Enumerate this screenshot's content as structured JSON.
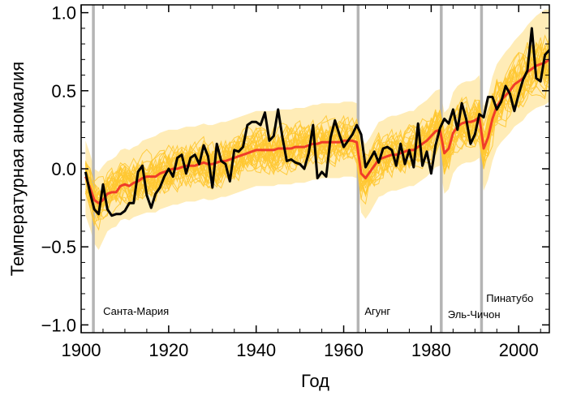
{
  "chart_data": {
    "type": "line",
    "xlabel": "Год",
    "ylabel": "Температурная аномалия",
    "xlim": [
      1900,
      2007
    ],
    "ylim": [
      -1.05,
      1.05
    ],
    "xticks": [
      1900,
      1920,
      1940,
      1960,
      1980,
      2000
    ],
    "xtick_labels": [
      "1900",
      "1920",
      "1940",
      "1960",
      "1980",
      "2000"
    ],
    "yticks": [
      -1.0,
      -0.5,
      0.0,
      0.5,
      1.0
    ],
    "ytick_labels": [
      "−1.0",
      "−0.5",
      "0.0",
      "0.5",
      "1.0"
    ],
    "grid": false,
    "colors": {
      "ensemble": "#FFC832",
      "ensemble_mean": "#F03C28",
      "observed": "#000000",
      "eruption_line": "#B4B4B4"
    },
    "eruptions": [
      {
        "label": "Санта-Мария",
        "year": 1902.8
      },
      {
        "label": "Агунг",
        "year": 1963.3
      },
      {
        "label": "Эль-Чичон",
        "year": 1982.3
      },
      {
        "label": "Пинатубо",
        "year": 1991.5
      }
    ],
    "x_start": 1901,
    "x_step": 1,
    "observed": [
      -0.02,
      -0.15,
      -0.26,
      -0.29,
      -0.1,
      -0.26,
      -0.3,
      -0.29,
      -0.29,
      -0.27,
      -0.22,
      -0.22,
      -0.02,
      0.02,
      -0.17,
      -0.25,
      -0.16,
      -0.12,
      -0.05,
      0.0,
      -0.05,
      0.07,
      0.09,
      -0.03,
      0.07,
      0.09,
      0.03,
      0.15,
      0.08,
      -0.12,
      0.16,
      0.05,
      0.03,
      -0.08,
      0.12,
      0.11,
      0.14,
      0.28,
      0.3,
      0.3,
      0.28,
      0.36,
      0.18,
      0.21,
      0.38,
      0.2,
      0.05,
      0.06,
      0.04,
      0.03,
      0.0,
      0.1,
      0.28,
      -0.06,
      -0.02,
      -0.05,
      0.2,
      0.31,
      0.22,
      0.14,
      0.18,
      0.22,
      0.28,
      0.22,
      0.01,
      0.06,
      0.11,
      0.04,
      0.13,
      0.14,
      0.12,
      0.02,
      0.16,
      0.03,
      0.12,
      0.01,
      0.29,
      0.02,
      0.11,
      -0.03,
      0.15,
      0.26,
      0.32,
      0.29,
      0.38,
      0.25,
      0.42,
      0.32,
      0.16,
      0.22,
      0.35,
      0.33,
      0.46,
      0.46,
      0.38,
      0.43,
      0.53,
      0.48,
      0.37,
      0.48,
      0.57,
      0.63,
      0.9,
      0.58,
      0.56,
      0.73,
      0.76,
      0.78,
      0.77,
      0.78
    ],
    "ensemble_mean": [
      -0.05,
      -0.12,
      -0.2,
      -0.22,
      -0.2,
      -0.16,
      -0.15,
      -0.15,
      -0.11,
      -0.1,
      -0.11,
      -0.09,
      -0.08,
      -0.06,
      -0.05,
      -0.05,
      -0.05,
      -0.03,
      -0.02,
      -0.01,
      0.0,
      0.0,
      0.01,
      0.02,
      0.02,
      0.02,
      0.03,
      0.04,
      0.03,
      0.03,
      0.04,
      0.05,
      0.05,
      0.06,
      0.07,
      0.08,
      0.09,
      0.1,
      0.11,
      0.12,
      0.12,
      0.12,
      0.12,
      0.12,
      0.13,
      0.13,
      0.13,
      0.13,
      0.14,
      0.14,
      0.14,
      0.15,
      0.16,
      0.16,
      0.17,
      0.17,
      0.17,
      0.17,
      0.17,
      0.18,
      0.18,
      0.18,
      0.17,
      -0.03,
      -0.06,
      -0.02,
      0.02,
      0.06,
      0.07,
      0.08,
      0.09,
      0.09,
      0.1,
      0.11,
      0.12,
      0.12,
      0.14,
      0.16,
      0.18,
      0.21,
      0.24,
      0.25,
      0.1,
      0.13,
      0.23,
      0.27,
      0.29,
      0.3,
      0.3,
      0.31,
      0.33,
      0.13,
      0.2,
      0.32,
      0.4,
      0.44,
      0.47,
      0.5,
      0.54,
      0.56,
      0.58,
      0.62,
      0.64,
      0.66,
      0.67,
      0.68,
      0.7,
      0.72,
      0.73,
      0.75
    ],
    "ensemble_upper": [
      0.18,
      0.1,
      0.0,
      -0.02,
      0.02,
      0.05,
      0.06,
      0.08,
      0.12,
      0.13,
      0.12,
      0.14,
      0.15,
      0.18,
      0.19,
      0.2,
      0.21,
      0.23,
      0.24,
      0.25,
      0.25,
      0.25,
      0.26,
      0.27,
      0.27,
      0.27,
      0.28,
      0.29,
      0.28,
      0.28,
      0.29,
      0.3,
      0.3,
      0.31,
      0.32,
      0.33,
      0.34,
      0.35,
      0.36,
      0.37,
      0.37,
      0.37,
      0.37,
      0.37,
      0.38,
      0.38,
      0.38,
      0.38,
      0.39,
      0.39,
      0.39,
      0.4,
      0.41,
      0.41,
      0.42,
      0.42,
      0.42,
      0.42,
      0.42,
      0.43,
      0.43,
      0.43,
      0.42,
      0.2,
      0.16,
      0.2,
      0.25,
      0.3,
      0.31,
      0.33,
      0.34,
      0.34,
      0.35,
      0.36,
      0.37,
      0.37,
      0.4,
      0.42,
      0.44,
      0.47,
      0.5,
      0.51,
      0.36,
      0.39,
      0.49,
      0.53,
      0.55,
      0.56,
      0.56,
      0.57,
      0.6,
      0.4,
      0.47,
      0.59,
      0.67,
      0.71,
      0.75,
      0.78,
      0.82,
      0.85,
      0.88,
      0.92,
      0.95,
      0.98,
      1.0,
      1.02,
      1.02,
      1.03,
      1.02,
      1.0
    ],
    "ensemble_lower": [
      -0.3,
      -0.38,
      -0.48,
      -0.52,
      -0.46,
      -0.4,
      -0.38,
      -0.37,
      -0.33,
      -0.32,
      -0.33,
      -0.31,
      -0.3,
      -0.29,
      -0.28,
      -0.28,
      -0.28,
      -0.26,
      -0.25,
      -0.24,
      -0.23,
      -0.23,
      -0.22,
      -0.21,
      -0.21,
      -0.21,
      -0.2,
      -0.19,
      -0.2,
      -0.2,
      -0.19,
      -0.18,
      -0.18,
      -0.17,
      -0.16,
      -0.15,
      -0.14,
      -0.13,
      -0.12,
      -0.11,
      -0.11,
      -0.11,
      -0.11,
      -0.11,
      -0.1,
      -0.1,
      -0.1,
      -0.1,
      -0.09,
      -0.09,
      -0.09,
      -0.08,
      -0.07,
      -0.07,
      -0.06,
      -0.06,
      -0.06,
      -0.06,
      -0.06,
      -0.05,
      -0.05,
      -0.05,
      -0.06,
      -0.28,
      -0.32,
      -0.28,
      -0.23,
      -0.18,
      -0.17,
      -0.15,
      -0.14,
      -0.14,
      -0.13,
      -0.12,
      -0.11,
      -0.11,
      -0.09,
      -0.07,
      -0.05,
      -0.02,
      0.01,
      0.02,
      -0.16,
      -0.13,
      -0.03,
      0.01,
      0.03,
      0.04,
      0.04,
      0.05,
      0.07,
      -0.14,
      -0.07,
      0.05,
      0.13,
      0.17,
      0.2,
      0.23,
      0.27,
      0.29,
      0.31,
      0.35,
      0.37,
      0.39,
      0.4,
      0.41,
      0.43,
      0.45,
      0.46,
      0.48
    ]
  }
}
